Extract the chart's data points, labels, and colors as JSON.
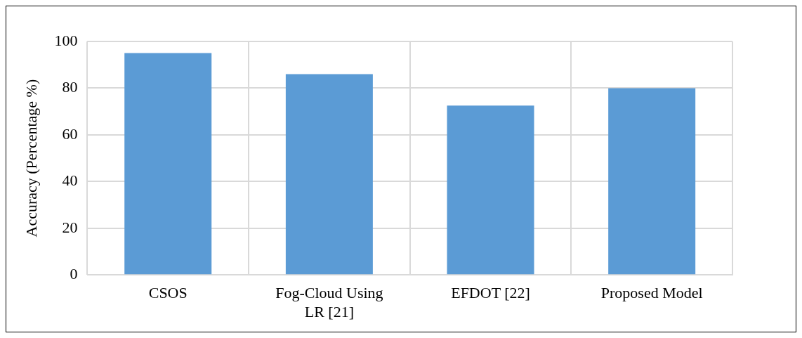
{
  "chart_data": {
    "type": "bar",
    "ylabel": "Accuracy (Percentage %)",
    "categories": [
      "CSOS",
      "Fog-Cloud Using LR [21]",
      "EFDOT [22]",
      "Proposed Model"
    ],
    "values": [
      95,
      86,
      72.5,
      80
    ],
    "color": "#5b9bd5",
    "ylim": [
      0,
      100
    ],
    "yticks": [
      0,
      20,
      40,
      60,
      80,
      100
    ],
    "grid": true
  }
}
